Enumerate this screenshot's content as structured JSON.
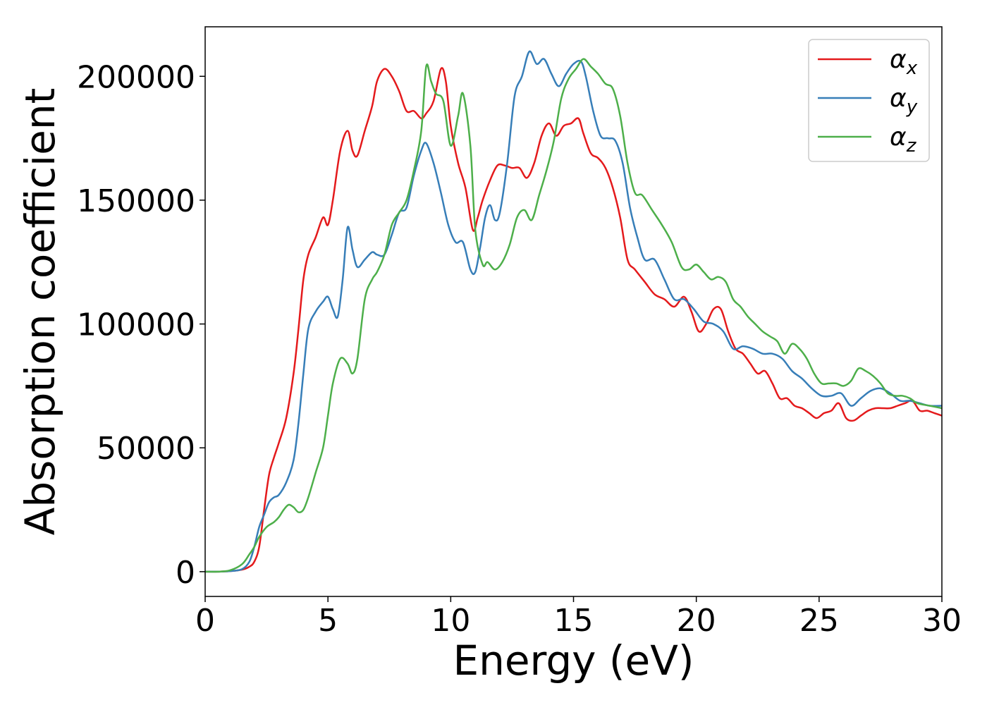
{
  "chart_data": {
    "type": "line",
    "title": "",
    "xlabel": "Energy (eV)",
    "ylabel": "Absorption coefficient",
    "xlim": [
      0,
      30
    ],
    "ylim": [
      -10000,
      220000
    ],
    "xticks": [
      0,
      5,
      10,
      15,
      20,
      25,
      30
    ],
    "yticks": [
      0,
      50000,
      100000,
      150000,
      200000
    ],
    "grid": false,
    "legend_position": "top-right",
    "series": [
      {
        "name": "αx",
        "name_base": "α",
        "name_sub": "x",
        "color": "#e41a1c",
        "x": [
          0,
          0.5,
          1,
          1.5,
          1.8,
          2,
          2.2,
          2.4,
          2.6,
          2.8,
          3,
          3.3,
          3.6,
          3.8,
          4,
          4.2,
          4.5,
          4.8,
          5,
          5.2,
          5.5,
          5.8,
          6,
          6.2,
          6.5,
          6.8,
          7,
          7.3,
          7.6,
          7.9,
          8.2,
          8.5,
          8.8,
          9,
          9.3,
          9.6,
          9.8,
          10,
          10.3,
          10.6,
          10.9,
          11.1,
          11.3,
          11.6,
          11.9,
          12.2,
          12.5,
          12.8,
          13.1,
          13.4,
          13.7,
          14,
          14.3,
          14.6,
          14.9,
          15.2,
          15.4,
          15.7,
          16,
          16.3,
          16.6,
          16.9,
          17.2,
          17.5,
          17.9,
          18.3,
          18.7,
          19.1,
          19.5,
          19.8,
          20.1,
          20.4,
          20.7,
          21,
          21.3,
          21.6,
          21.9,
          22.2,
          22.5,
          22.8,
          23.1,
          23.4,
          23.7,
          24,
          24.3,
          24.6,
          24.9,
          25.2,
          25.5,
          25.8,
          26.1,
          26.4,
          26.7,
          27,
          27.3,
          27.6,
          27.9,
          28.2,
          28.5,
          28.8,
          29.1,
          29.4,
          29.7,
          30
        ],
        "y": [
          0,
          0,
          200,
          800,
          2000,
          4000,
          10000,
          25000,
          39000,
          46000,
          52000,
          62000,
          80000,
          98000,
          118000,
          128000,
          135000,
          143000,
          140000,
          150000,
          170000,
          178000,
          170000,
          168000,
          178000,
          188000,
          198000,
          203000,
          200000,
          194000,
          186000,
          186000,
          183000,
          185000,
          190000,
          203000,
          198000,
          180000,
          165000,
          155000,
          138000,
          143000,
          150000,
          158000,
          164000,
          164000,
          163000,
          163000,
          159000,
          165000,
          176000,
          181000,
          176000,
          180000,
          181000,
          183000,
          177000,
          169000,
          167000,
          163000,
          155000,
          143000,
          126000,
          122000,
          117000,
          112000,
          110000,
          107000,
          111000,
          105000,
          97000,
          100000,
          106000,
          106000,
          97000,
          90000,
          88000,
          84000,
          80000,
          81000,
          76000,
          70000,
          70000,
          67000,
          66000,
          64000,
          62000,
          64000,
          65000,
          68000,
          62000,
          61000,
          63000,
          65000,
          66000,
          66000,
          66000,
          67000,
          68000,
          69000,
          65000,
          65000,
          64000,
          63000
        ]
      },
      {
        "name": "αy",
        "name_base": "α",
        "name_sub": "y",
        "color": "#377eb8",
        "x": [
          0,
          0.5,
          1,
          1.5,
          1.8,
          2,
          2.2,
          2.4,
          2.6,
          2.8,
          3,
          3.3,
          3.6,
          3.8,
          4,
          4.2,
          4.5,
          4.8,
          5,
          5.2,
          5.4,
          5.6,
          5.8,
          6,
          6.2,
          6.5,
          6.8,
          7,
          7.3,
          7.6,
          7.9,
          8.2,
          8.5,
          8.8,
          9,
          9.3,
          9.6,
          9.9,
          10.2,
          10.5,
          10.8,
          11,
          11.2,
          11.4,
          11.6,
          11.8,
          12,
          12.3,
          12.6,
          12.9,
          13.2,
          13.5,
          13.8,
          14.1,
          14.4,
          14.7,
          15,
          15.3,
          15.5,
          15.8,
          16.1,
          16.4,
          16.7,
          17,
          17.3,
          17.6,
          17.9,
          18.3,
          18.7,
          19.1,
          19.5,
          19.9,
          20.3,
          20.7,
          21.1,
          21.5,
          21.9,
          22.3,
          22.7,
          23.1,
          23.5,
          23.9,
          24.3,
          24.7,
          25.1,
          25.5,
          25.9,
          26.3,
          26.7,
          27.1,
          27.5,
          27.9,
          28.3,
          28.7,
          29.1,
          29.5,
          30
        ],
        "y": [
          0,
          0,
          200,
          1000,
          4000,
          10000,
          18000,
          23000,
          28000,
          30000,
          31000,
          36000,
          45000,
          60000,
          80000,
          98000,
          105000,
          109000,
          111000,
          106000,
          103000,
          118000,
          139000,
          130000,
          123000,
          126000,
          129000,
          128000,
          128000,
          136000,
          145000,
          147000,
          160000,
          170000,
          173000,
          165000,
          153000,
          140000,
          133000,
          133000,
          122000,
          121000,
          131000,
          143000,
          148000,
          142000,
          145000,
          165000,
          192000,
          200000,
          210000,
          205000,
          207000,
          201000,
          196000,
          201000,
          205000,
          206000,
          200000,
          186000,
          176000,
          175000,
          174000,
          165000,
          147000,
          135000,
          126000,
          126000,
          118000,
          110000,
          110000,
          106000,
          101000,
          100000,
          97000,
          90000,
          91000,
          90000,
          88000,
          88000,
          86000,
          81000,
          78000,
          74000,
          71000,
          71000,
          72000,
          67000,
          70000,
          73000,
          74000,
          72000,
          69000,
          69000,
          68000,
          67000,
          67000
        ]
      },
      {
        "name": "αz",
        "name_base": "α",
        "name_sub": "z",
        "color": "#4daf4a",
        "x": [
          0,
          0.5,
          1,
          1.5,
          1.8,
          2,
          2.2,
          2.5,
          2.8,
          3,
          3.2,
          3.4,
          3.6,
          3.8,
          4,
          4.2,
          4.5,
          4.8,
          5,
          5.2,
          5.5,
          5.8,
          6,
          6.2,
          6.5,
          6.8,
          7,
          7.3,
          7.6,
          7.9,
          8.2,
          8.5,
          8.8,
          9,
          9.2,
          9.4,
          9.7,
          10,
          10.3,
          10.5,
          10.8,
          11,
          11.3,
          11.5,
          11.8,
          12.1,
          12.4,
          12.7,
          13,
          13.3,
          13.6,
          13.9,
          14.2,
          14.5,
          14.8,
          15.1,
          15.4,
          15.7,
          16,
          16.3,
          16.6,
          16.9,
          17.2,
          17.5,
          17.8,
          18.2,
          18.6,
          19,
          19.4,
          19.7,
          20,
          20.3,
          20.6,
          20.9,
          21.2,
          21.5,
          21.8,
          22.1,
          22.4,
          22.7,
          23,
          23.3,
          23.6,
          23.9,
          24.2,
          24.5,
          24.8,
          25.1,
          25.4,
          25.7,
          26,
          26.3,
          26.6,
          26.9,
          27.2,
          27.5,
          27.8,
          28.1,
          28.4,
          28.7,
          29,
          29.5,
          30
        ],
        "y": [
          0,
          0,
          500,
          3000,
          7000,
          10000,
          14000,
          18000,
          20000,
          22000,
          25000,
          27000,
          26000,
          24000,
          25000,
          30000,
          40000,
          50000,
          63000,
          76000,
          86000,
          84000,
          80000,
          86000,
          110000,
          118000,
          121000,
          128000,
          140000,
          145000,
          150000,
          162000,
          178000,
          204000,
          198000,
          193000,
          190000,
          172000,
          184000,
          193000,
          172000,
          138000,
          124000,
          125000,
          122000,
          125000,
          132000,
          143000,
          146000,
          142000,
          152000,
          162000,
          174000,
          191000,
          199000,
          203000,
          207000,
          204000,
          201000,
          197000,
          195000,
          184000,
          165000,
          153000,
          152000,
          146000,
          140000,
          133000,
          123000,
          122000,
          124000,
          121000,
          118000,
          119000,
          117000,
          110000,
          107000,
          103000,
          100000,
          97000,
          95000,
          93000,
          88000,
          92000,
          90000,
          86000,
          80000,
          76000,
          76000,
          76000,
          75000,
          77000,
          82000,
          81000,
          79000,
          76000,
          72000,
          71000,
          71000,
          70000,
          68000,
          67000,
          66000
        ]
      }
    ]
  }
}
